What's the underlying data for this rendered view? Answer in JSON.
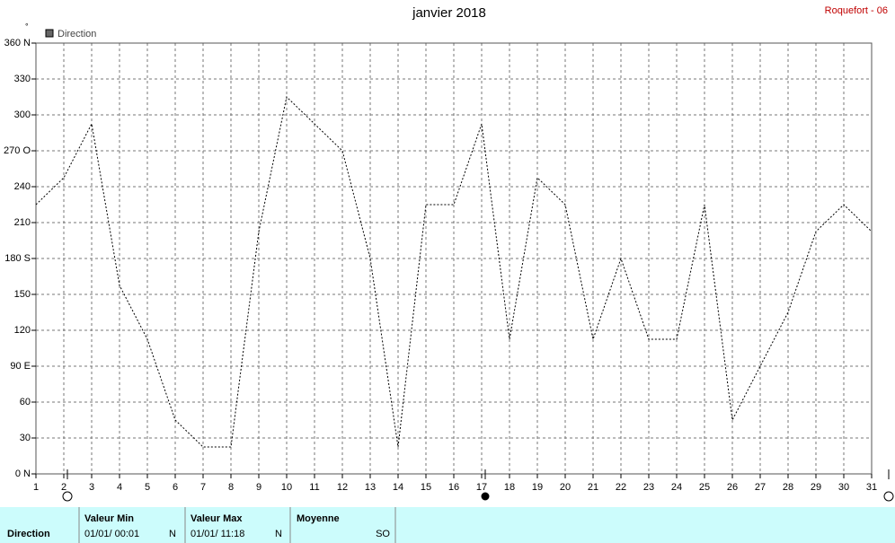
{
  "chart_data": {
    "type": "line",
    "title": "janvier 2018",
    "station": "Roquefort - 06",
    "unit": "°",
    "x": [
      1,
      2,
      3,
      4,
      5,
      6,
      7,
      8,
      9,
      10,
      11,
      12,
      13,
      14,
      15,
      16,
      17,
      18,
      19,
      20,
      21,
      22,
      23,
      24,
      25,
      26,
      27,
      28,
      29,
      30,
      31
    ],
    "series": [
      {
        "name": "Direction",
        "color": "#000000",
        "values": [
          225,
          247.5,
          292.5,
          157.5,
          112.5,
          45,
          22.5,
          22.5,
          202.5,
          315,
          292.5,
          270,
          180,
          22.5,
          225,
          225,
          292.5,
          112.5,
          247.5,
          225,
          112.5,
          180,
          112.5,
          112.5,
          225,
          45,
          90,
          135,
          202.5,
          225,
          202.5
        ]
      }
    ],
    "xlim": [
      1,
      31
    ],
    "xticks": [
      1,
      2,
      3,
      4,
      5,
      6,
      7,
      8,
      9,
      10,
      11,
      12,
      13,
      14,
      15,
      16,
      17,
      18,
      19,
      20,
      21,
      22,
      23,
      24,
      25,
      26,
      27,
      28,
      29,
      30,
      31
    ],
    "ylim": [
      0,
      360
    ],
    "yticks": [
      {
        "value": 0,
        "label": "0    N"
      },
      30,
      60,
      {
        "value": 90,
        "label": "90  E"
      },
      120,
      150,
      {
        "value": 180,
        "label": "180 S"
      },
      210,
      240,
      {
        "value": 270,
        "label": "270 O"
      },
      300,
      330,
      {
        "value": 360,
        "label": "360 N"
      }
    ],
    "grid": true,
    "table": {
      "row_label": "Direction",
      "min": {
        "header": "Valeur Min",
        "time": "01/01/  00:01",
        "value": "N"
      },
      "max": {
        "header": "Valeur Max",
        "time": "01/01/  11:18",
        "value": "N"
      },
      "mean": {
        "header": "Moyenne",
        "value": "SO"
      }
    }
  }
}
